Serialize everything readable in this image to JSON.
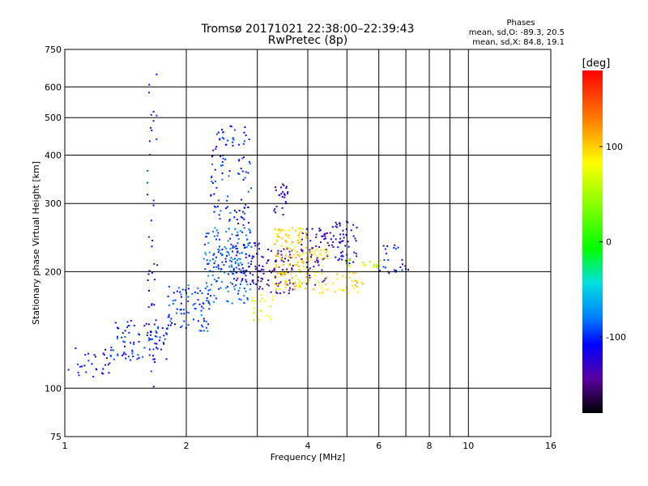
{
  "header": {
    "title_line1": "Tromsø 20171021 22:38:00–22:39:43",
    "title_line2": "RwPretec (8p)",
    "stats_title": "Phases",
    "stats_line1": "mean, sd,O: -89.3, 20.5",
    "stats_line2": "mean, sd,X: 84.8, 19.1"
  },
  "chart_data": {
    "type": "scatter",
    "xlabel": "Frequency [MHz]",
    "ylabel": "Stationary phase Virtual Height [km]",
    "x_scale": "log",
    "y_scale": "log",
    "xlim": [
      1,
      16
    ],
    "ylim": [
      75,
      750
    ],
    "x_ticks": [
      1,
      2,
      4,
      8,
      16
    ],
    "x_tick_labels": [
      "1",
      "2",
      "4",
      "6",
      "8",
      "10",
      "16"
    ],
    "x_tick_label_values": [
      1,
      2,
      4,
      6,
      8,
      10,
      16
    ],
    "x_minor_gridlines": [
      3,
      5,
      6,
      7,
      9,
      10
    ],
    "y_tick_labels": [
      "75",
      "100",
      "200",
      "300",
      "400",
      "500",
      "600",
      "750"
    ],
    "y_tick_values": [
      75,
      100,
      200,
      300,
      400,
      500,
      600,
      750
    ],
    "grid": true,
    "colorbar": {
      "label": "[deg]",
      "range": [
        -180,
        180
      ],
      "tick_labels": [
        "100",
        "0",
        "-100"
      ],
      "tick_values": [
        100,
        0,
        -100
      ]
    },
    "clusters": [
      {
        "x": [
          1.02,
          1.3
        ],
        "y": [
          105,
          130
        ],
        "phase": -110,
        "n": 30
      },
      {
        "x": [
          1.3,
          1.8
        ],
        "y": [
          118,
          150
        ],
        "phase": -105,
        "n": 90
      },
      {
        "x": [
          1.8,
          2.3
        ],
        "y": [
          140,
          185
        ],
        "phase": -95,
        "n": 80
      },
      {
        "x": [
          2.2,
          2.9
        ],
        "y": [
          165,
          260
        ],
        "phase": -85,
        "n": 140
      },
      {
        "x": [
          2.3,
          2.9
        ],
        "y": [
          200,
          480
        ],
        "phase": -100,
        "n": 140
      },
      {
        "x": [
          2.6,
          3.1
        ],
        "y": [
          185,
          240
        ],
        "phase": -115,
        "n": 60
      },
      {
        "x": [
          2.9,
          3.3
        ],
        "y": [
          150,
          175
        ],
        "phase": 80,
        "n": 20
      },
      {
        "x": [
          3.0,
          3.7
        ],
        "y": [
          175,
          230
        ],
        "phase": -135,
        "n": 80
      },
      {
        "x": [
          3.3,
          3.6
        ],
        "y": [
          280,
          340
        ],
        "phase": -125,
        "n": 25
      },
      {
        "x": [
          3.3,
          4.0
        ],
        "y": [
          180,
          260
        ],
        "phase": 95,
        "n": 150
      },
      {
        "x": [
          3.8,
          4.5
        ],
        "y": [
          180,
          260
        ],
        "phase": -130,
        "n": 60
      },
      {
        "x": [
          4.0,
          4.5
        ],
        "y": [
          175,
          230
        ],
        "phase": 85,
        "n": 40
      },
      {
        "x": [
          4.5,
          5.3
        ],
        "y": [
          210,
          270
        ],
        "phase": -120,
        "n": 60
      },
      {
        "x": [
          4.6,
          5.5
        ],
        "y": [
          175,
          200
        ],
        "phase": 95,
        "n": 30
      },
      {
        "x": [
          5.0,
          6.1
        ],
        "y": [
          205,
          215
        ],
        "phase": 60,
        "n": 20
      },
      {
        "x": [
          6.0,
          7.1
        ],
        "y": [
          195,
          235
        ],
        "phase": -110,
        "n": 25
      },
      {
        "x": [
          1.6,
          1.7
        ],
        "y": [
          100,
          650
        ],
        "phase": -110,
        "n": 40
      }
    ]
  }
}
